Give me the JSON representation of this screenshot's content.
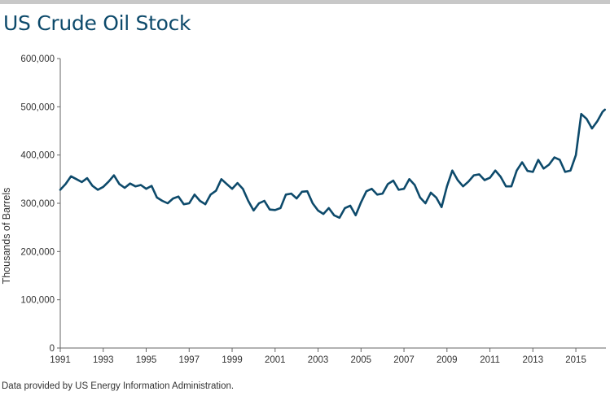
{
  "header": {
    "title": "US Crude Oil Stock"
  },
  "footer": {
    "source": "Data provided by US Energy Information Administration."
  },
  "colors": {
    "line": "#0d4a6b",
    "title": "#0d4a6b",
    "axis": "#666666",
    "rule": "#c8c8c8"
  },
  "chart_data": {
    "type": "line",
    "title": "US Crude Oil Stock",
    "xlabel": "",
    "ylabel": "Thousands of Barrels",
    "xlim": [
      1991,
      2016.4
    ],
    "ylim": [
      0,
      600000
    ],
    "x_ticks": [
      1991,
      1993,
      1995,
      1997,
      1999,
      2001,
      2003,
      2005,
      2007,
      2009,
      2011,
      2013,
      2015
    ],
    "y_ticks": [
      0,
      100000,
      200000,
      300000,
      400000,
      500000,
      600000
    ],
    "y_tick_labels": [
      "0",
      "100,000",
      "200,000",
      "300,000",
      "400,000",
      "500,000",
      "600,000"
    ],
    "grid": false,
    "series": [
      {
        "x": [
          1991.0,
          1991.25,
          1991.5,
          1991.75,
          1992.0,
          1992.25,
          1992.5,
          1992.75,
          1993.0,
          1993.25,
          1993.5,
          1993.75,
          1994.0,
          1994.25,
          1994.5,
          1994.75,
          1995.0,
          1995.25,
          1995.5,
          1995.75,
          1996.0,
          1996.25,
          1996.5,
          1996.75,
          1997.0,
          1997.25,
          1997.5,
          1997.75,
          1998.0,
          1998.25,
          1998.5,
          1998.75,
          1999.0,
          1999.25,
          1999.5,
          1999.75,
          2000.0,
          2000.25,
          2000.5,
          2000.75,
          2001.0,
          2001.25,
          2001.5,
          2001.75,
          2002.0,
          2002.25,
          2002.5,
          2002.75,
          2003.0,
          2003.25,
          2003.5,
          2003.75,
          2004.0,
          2004.25,
          2004.5,
          2004.75,
          2005.0,
          2005.25,
          2005.5,
          2005.75,
          2006.0,
          2006.25,
          2006.5,
          2006.75,
          2007.0,
          2007.25,
          2007.5,
          2007.75,
          2008.0,
          2008.25,
          2008.5,
          2008.75,
          2009.0,
          2009.25,
          2009.5,
          2009.75,
          2010.0,
          2010.25,
          2010.5,
          2010.75,
          2011.0,
          2011.25,
          2011.5,
          2011.75,
          2012.0,
          2012.25,
          2012.5,
          2012.75,
          2013.0,
          2013.25,
          2013.5,
          2013.75,
          2014.0,
          2014.25,
          2014.5,
          2014.75,
          2015.0,
          2015.25,
          2015.5,
          2015.75,
          2016.0,
          2016.25,
          2016.35
        ],
        "values": [
          328000,
          340000,
          356000,
          350000,
          344000,
          352000,
          336000,
          328000,
          334000,
          345000,
          358000,
          340000,
          332000,
          341000,
          335000,
          338000,
          330000,
          336000,
          312000,
          305000,
          300000,
          310000,
          314000,
          298000,
          300000,
          318000,
          305000,
          298000,
          318000,
          326000,
          350000,
          340000,
          330000,
          342000,
          330000,
          305000,
          285000,
          300000,
          305000,
          287000,
          286000,
          290000,
          318000,
          320000,
          310000,
          324000,
          325000,
          300000,
          285000,
          278000,
          290000,
          275000,
          270000,
          290000,
          295000,
          275000,
          302000,
          325000,
          330000,
          318000,
          320000,
          340000,
          347000,
          328000,
          330000,
          350000,
          338000,
          312000,
          300000,
          322000,
          312000,
          292000,
          335000,
          368000,
          348000,
          335000,
          345000,
          358000,
          360000,
          348000,
          353000,
          368000,
          355000,
          335000,
          335000,
          368000,
          385000,
          367000,
          365000,
          390000,
          372000,
          380000,
          395000,
          390000,
          365000,
          368000,
          400000,
          485000,
          475000,
          455000,
          470000,
          490000,
          494000
        ]
      }
    ]
  }
}
